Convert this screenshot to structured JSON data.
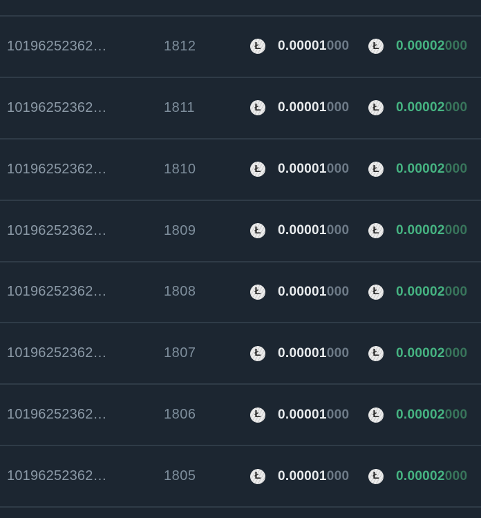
{
  "table": {
    "coin_symbol": "Ł",
    "coin_icon": "litecoin-icon",
    "colors": {
      "background": "#1c2631",
      "separator": "#2f3b47",
      "id_text": "#8b99a6",
      "height_text": "#7e8e9c",
      "amount_main": "#e9ecee",
      "amount_sub": "#6d7a87",
      "amount_green_main": "#46b482",
      "amount_green_sub": "#38755b",
      "coin_background": "#ececec"
    },
    "rows": [
      {
        "id": "10196252362…",
        "height": "1812",
        "amount1_main": "0.00001",
        "amount1_sub": "000",
        "amount2_main": "0.00002",
        "amount2_sub": "000"
      },
      {
        "id": "10196252362…",
        "height": "1811",
        "amount1_main": "0.00001",
        "amount1_sub": "000",
        "amount2_main": "0.00002",
        "amount2_sub": "000"
      },
      {
        "id": "10196252362…",
        "height": "1810",
        "amount1_main": "0.00001",
        "amount1_sub": "000",
        "amount2_main": "0.00002",
        "amount2_sub": "000"
      },
      {
        "id": "10196252362…",
        "height": "1809",
        "amount1_main": "0.00001",
        "amount1_sub": "000",
        "amount2_main": "0.00002",
        "amount2_sub": "000"
      },
      {
        "id": "10196252362…",
        "height": "1808",
        "amount1_main": "0.00001",
        "amount1_sub": "000",
        "amount2_main": "0.00002",
        "amount2_sub": "000"
      },
      {
        "id": "10196252362…",
        "height": "1807",
        "amount1_main": "0.00001",
        "amount1_sub": "000",
        "amount2_main": "0.00002",
        "amount2_sub": "000"
      },
      {
        "id": "10196252362…",
        "height": "1806",
        "amount1_main": "0.00001",
        "amount1_sub": "000",
        "amount2_main": "0.00002",
        "amount2_sub": "000"
      },
      {
        "id": "10196252362…",
        "height": "1805",
        "amount1_main": "0.00001",
        "amount1_sub": "000",
        "amount2_main": "0.00002",
        "amount2_sub": "000"
      }
    ]
  }
}
